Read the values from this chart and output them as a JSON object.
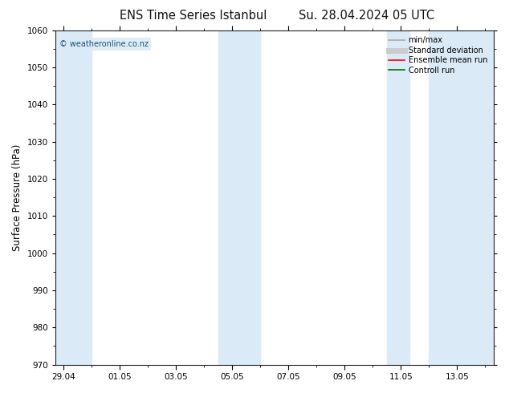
{
  "title_left": "ENS Time Series Istanbul",
  "title_right": "Su. 28.04.2024 05 UTC",
  "ylabel": "Surface Pressure (hPa)",
  "ylim": [
    970,
    1060
  ],
  "yticks": [
    970,
    980,
    990,
    1000,
    1010,
    1020,
    1030,
    1040,
    1050,
    1060
  ],
  "xtick_labels": [
    "29.04",
    "01.05",
    "03.05",
    "05.05",
    "07.05",
    "09.05",
    "11.05",
    "13.05"
  ],
  "xtick_positions": [
    0,
    2,
    4,
    6,
    8,
    10,
    12,
    14
  ],
  "xmin": -0.3,
  "xmax": 15.3,
  "shaded_bands": [
    {
      "x_start": -0.3,
      "x_end": 1.0
    },
    {
      "x_start": 5.5,
      "x_end": 7.0
    },
    {
      "x_start": 11.5,
      "x_end": 12.3
    },
    {
      "x_start": 13.0,
      "x_end": 15.3
    }
  ],
  "shade_color": "#daeaf6",
  "background_color": "#ffffff",
  "plot_bg_color": "#ffffff",
  "watermark": "© weatheronline.co.nz",
  "legend_items": [
    {
      "label": "min/max",
      "color": "#aaaaaa",
      "lw": 1.2,
      "ls": "-"
    },
    {
      "label": "Standard deviation",
      "color": "#cccccc",
      "lw": 5,
      "ls": "-"
    },
    {
      "label": "Ensemble mean run",
      "color": "#ff0000",
      "lw": 1.2,
      "ls": "-"
    },
    {
      "label": "Controll run",
      "color": "#007700",
      "lw": 1.2,
      "ls": "-"
    }
  ],
  "title_fontsize": 10.5,
  "tick_fontsize": 7.5,
  "ylabel_fontsize": 8.5,
  "watermark_fontsize": 7,
  "legend_fontsize": 7
}
